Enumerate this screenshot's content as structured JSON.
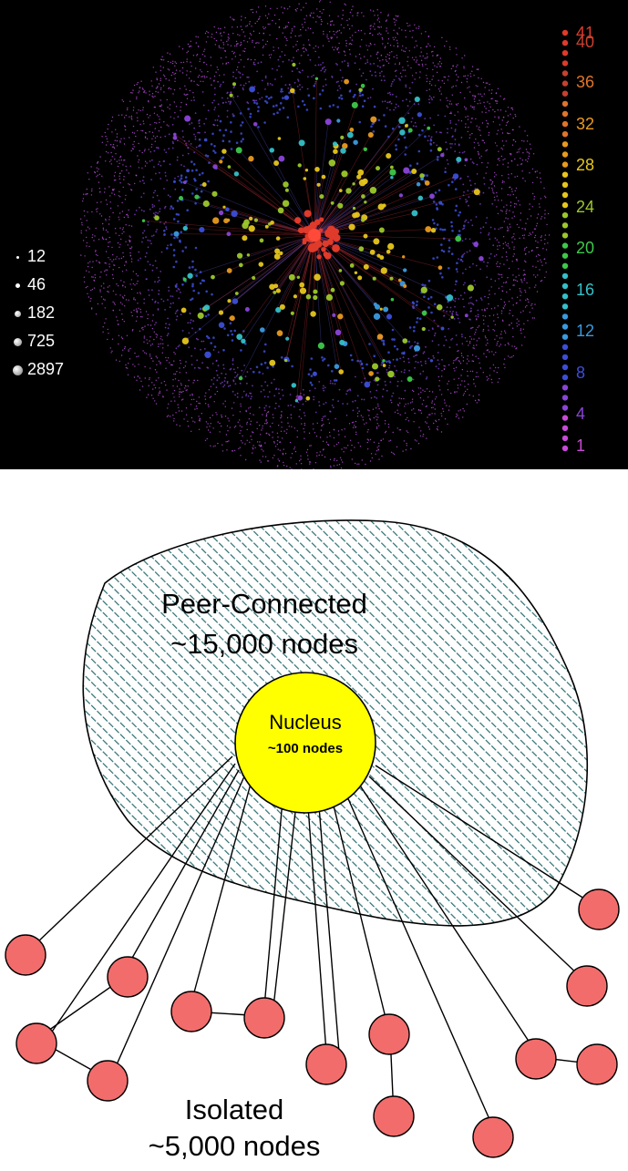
{
  "size_legend": {
    "items": [
      {
        "label": "12",
        "level": 1
      },
      {
        "label": "46",
        "level": 2
      },
      {
        "label": "182",
        "level": 3
      },
      {
        "label": "725",
        "level": 4
      },
      {
        "label": "2897",
        "level": 5
      }
    ]
  },
  "color_legend": {
    "entries": [
      {
        "label": "41",
        "color": "#e03a2a"
      },
      {
        "label": "40",
        "color": "#c8402e"
      },
      {
        "label": "36",
        "color": "#e0742a"
      },
      {
        "label": "32",
        "color": "#e89a1e"
      },
      {
        "label": "28",
        "color": "#e6c61c"
      },
      {
        "label": "24",
        "color": "#9cc82a"
      },
      {
        "label": "20",
        "color": "#3ec84a"
      },
      {
        "label": "16",
        "color": "#34c0c8"
      },
      {
        "label": "12",
        "color": "#3a9ae0"
      },
      {
        "label": "8",
        "color": "#3c4ed8"
      },
      {
        "label": "4",
        "color": "#8a44d8"
      },
      {
        "label": "1",
        "color": "#c84ad8"
      }
    ]
  },
  "diagram": {
    "cloud_title": "Peer-Connected",
    "cloud_count": "~15,000 nodes",
    "nucleus_title": "Nucleus",
    "nucleus_count": "~100 nodes",
    "isolated_title": "Isolated",
    "isolated_count": "~5,000 nodes",
    "colors": {
      "nucleus": "#ffff00",
      "isolated_node": "#f26c6c",
      "hatch": "#2e6e70",
      "cloud_fill": "#ffffff"
    }
  }
}
